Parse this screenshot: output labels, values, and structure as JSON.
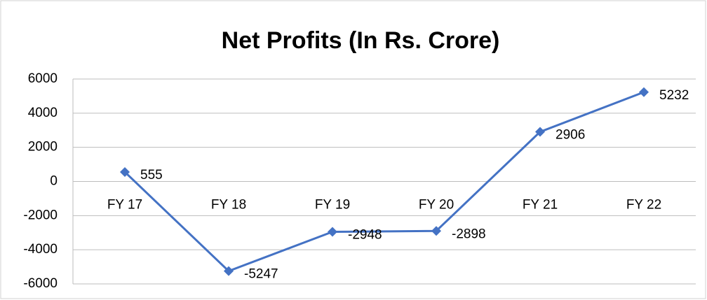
{
  "chart_data": {
    "type": "line",
    "title": "Net Profits (In Rs. Crore)",
    "categories": [
      "FY 17",
      "FY 18",
      "FY 19",
      "FY 20",
      "FY 21",
      "FY 22"
    ],
    "series": [
      {
        "name": "Net Profits",
        "color": "#4472c4",
        "values": [
          555,
          -5247,
          -2948,
          -2898,
          2906,
          5232
        ]
      }
    ],
    "ylim": [
      -6000,
      6000
    ],
    "yticks": [
      -6000,
      -4000,
      -2000,
      0,
      2000,
      4000,
      6000
    ],
    "grid": true
  }
}
